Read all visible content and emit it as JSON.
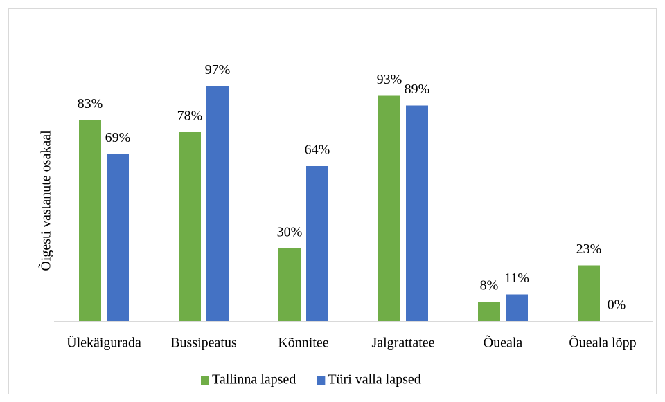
{
  "chart_data": {
    "type": "bar",
    "y_label": "Õigesti vastanute osakaal",
    "categories": [
      "Ülekäigurada",
      "Bussipeatus",
      "Kõnnitee",
      "Jalgrattatee",
      "Õueala",
      "Õueala lõpp"
    ],
    "series": [
      {
        "name": "Tallinna lapsed",
        "color": "#70ad47",
        "values": [
          83,
          78,
          30,
          93,
          8,
          23
        ],
        "value_labels": [
          "83%",
          "78%",
          "30%",
          "93%",
          "8%",
          "23%"
        ]
      },
      {
        "name": "Türi valla lapsed",
        "color": "#4472c4",
        "values": [
          69,
          97,
          64,
          89,
          11,
          0
        ],
        "value_labels": [
          "69%",
          "97%",
          "64%",
          "89%",
          "11%",
          "0%"
        ]
      }
    ],
    "ylim": [
      0,
      100
    ],
    "legend": "bottom"
  }
}
